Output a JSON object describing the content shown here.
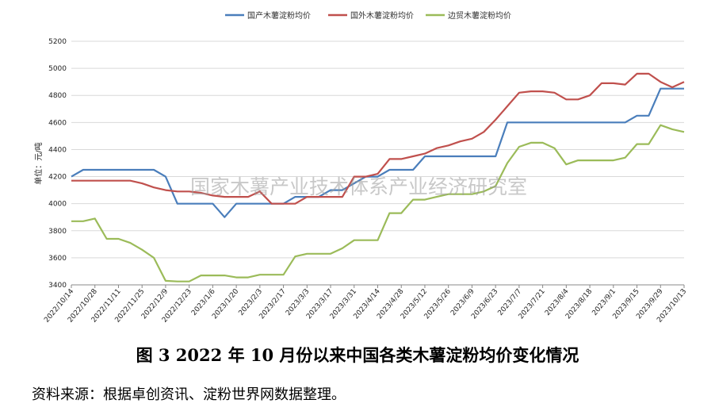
{
  "chart_data": {
    "type": "line",
    "ylabel": "单位：元/吨",
    "ylim": [
      3400,
      5200
    ],
    "yticks": [
      3400,
      3600,
      3800,
      4000,
      4200,
      4400,
      4600,
      4800,
      5000,
      5200
    ],
    "x": [
      "2022/10/14",
      "2022/10/21",
      "2022/10/28",
      "2022/11/4",
      "2022/11/11",
      "2022/11/18",
      "2022/11/25",
      "2022/12/2",
      "2022/12/9",
      "2022/12/16",
      "2022/12/23",
      "2022/12/30",
      "2023/1/6",
      "2023/1/13",
      "2023/1/20",
      "2023/1/27",
      "2023/2/3",
      "2023/2/10",
      "2023/2/17",
      "2023/2/24",
      "2023/3/3",
      "2023/3/10",
      "2023/3/17",
      "2023/3/24",
      "2023/3/31",
      "2023/4/7",
      "2023/4/14",
      "2023/4/21",
      "2023/4/28",
      "2023/5/5",
      "2023/5/12",
      "2023/5/19",
      "2023/5/26",
      "2023/6/2",
      "2023/6/9",
      "2023/6/16",
      "2023/6/23",
      "2023/6/30",
      "2023/7/7",
      "2023/7/14",
      "2023/7/21",
      "2023/7/28",
      "2023/8/4",
      "2023/8/11",
      "2023/8/18",
      "2023/8/25",
      "2023/9/1",
      "2023/9/8",
      "2023/9/15",
      "2023/9/22",
      "2023/9/29",
      "2023/10/6",
      "2023/10/13"
    ],
    "xtick_labels": [
      "2022/10/14",
      "2022/10/28",
      "2022/11/11",
      "2022/11/25",
      "2022/12/9",
      "2022/12/23",
      "2023/1/6",
      "2023/1/20",
      "2023/2/3",
      "2023/2/17",
      "2023/3/3",
      "2023/3/17",
      "2023/3/31",
      "2023/4/14",
      "2023/4/28",
      "2023/5/12",
      "2023/5/26",
      "2023/6/9",
      "2023/6/23",
      "2023/7/7",
      "2023/7/21",
      "2023/8/4",
      "2023/8/18",
      "2023/9/1",
      "2023/9/15",
      "2023/9/29",
      "2023/10/13"
    ],
    "series": [
      {
        "name": "国产木薯淀粉均价",
        "color": "#4a7ebb",
        "values": [
          4200,
          4250,
          4250,
          4250,
          4250,
          4250,
          4250,
          4250,
          4200,
          4000,
          4000,
          4000,
          4000,
          3900,
          4000,
          4000,
          4000,
          4000,
          4000,
          4050,
          4050,
          4050,
          4100,
          4100,
          4150,
          4200,
          4200,
          4250,
          4250,
          4250,
          4350,
          4350,
          4350,
          4350,
          4350,
          4350,
          4350,
          4600,
          4600,
          4600,
          4600,
          4600,
          4600,
          4600,
          4600,
          4600,
          4600,
          4600,
          4650,
          4650,
          4850,
          4850,
          4850
        ]
      },
      {
        "name": "国外木薯淀粉均价",
        "color": "#c0504d",
        "values": [
          4170,
          4170,
          4170,
          4170,
          4170,
          4170,
          4150,
          4120,
          4100,
          4090,
          4090,
          4080,
          4060,
          4050,
          4050,
          4050,
          4090,
          4000,
          4000,
          4000,
          4050,
          4050,
          4050,
          4050,
          4200,
          4200,
          4220,
          4330,
          4330,
          4350,
          4370,
          4410,
          4430,
          4460,
          4480,
          4530,
          4620,
          4720,
          4820,
          4830,
          4830,
          4820,
          4770,
          4770,
          4800,
          4890,
          4890,
          4880,
          4960,
          4960,
          4900,
          4860,
          4900
        ]
      },
      {
        "name": "边贸木薯淀粉均价",
        "color": "#9bbb59",
        "values": [
          3870,
          3870,
          3890,
          3740,
          3740,
          3710,
          3660,
          3600,
          3430,
          3425,
          3425,
          3470,
          3470,
          3470,
          3455,
          3455,
          3475,
          3475,
          3475,
          3610,
          3630,
          3630,
          3630,
          3670,
          3730,
          3730,
          3730,
          3930,
          3930,
          4030,
          4030,
          4050,
          4070,
          4070,
          4070,
          4090,
          4130,
          4300,
          4420,
          4450,
          4450,
          4410,
          4290,
          4320,
          4320,
          4320,
          4320,
          4340,
          4440,
          4440,
          4580,
          4550,
          4530
        ]
      }
    ]
  },
  "watermark": "国家木薯产业技术体系产业经济研究室",
  "caption": "图 3  2022 年 10 月份以来中国各类木薯淀粉均价变化情况",
  "source": "资料来源：根据卓创资讯、淀粉世界网数据整理。"
}
